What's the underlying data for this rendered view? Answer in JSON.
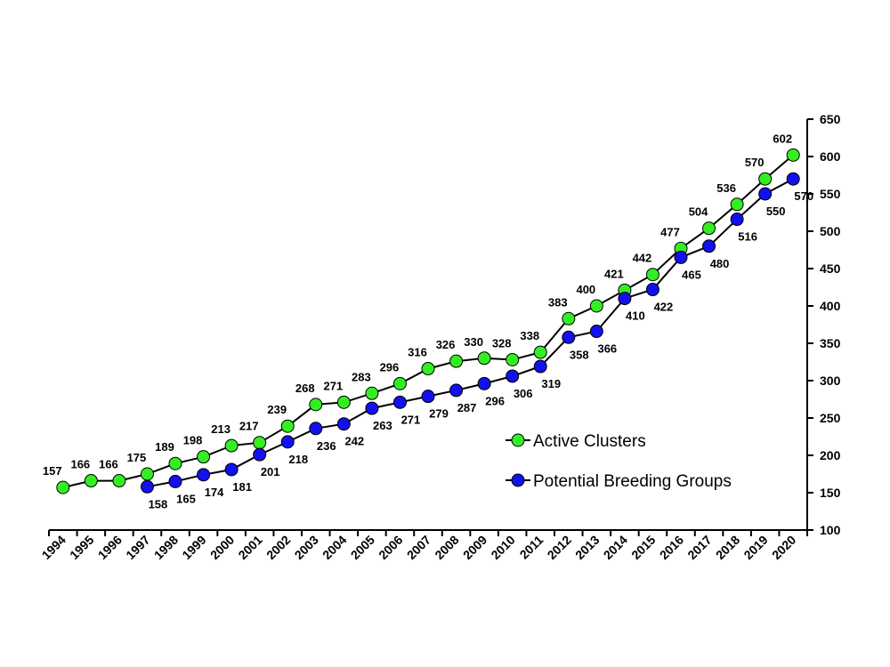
{
  "chart_data": {
    "type": "line",
    "x": [
      1994,
      1995,
      1996,
      1997,
      1998,
      1999,
      2000,
      2001,
      2002,
      2003,
      2004,
      2005,
      2006,
      2007,
      2008,
      2009,
      2010,
      2011,
      2012,
      2013,
      2014,
      2015,
      2016,
      2017,
      2018,
      2019,
      2020
    ],
    "x_tick_labels": [
      "1994",
      "1995",
      "1996",
      "1997",
      "1998",
      "1999",
      "2000",
      "2001",
      "2002",
      "2003",
      "2004",
      "2005",
      "2006",
      "2007",
      "2008",
      "2009",
      "2010",
      "2011",
      "2012",
      "2013",
      "2014",
      "2015",
      "2016",
      "2017",
      "2018",
      "2019",
      "2020"
    ],
    "series": [
      {
        "name": "Active Clusters",
        "color": "#33ee22",
        "label_position": "above",
        "values": [
          157,
          166,
          166,
          175,
          189,
          198,
          213,
          217,
          239,
          268,
          271,
          283,
          296,
          316,
          326,
          330,
          328,
          338,
          383,
          400,
          421,
          442,
          477,
          504,
          536,
          570,
          602
        ]
      },
      {
        "name": "Potential Breeding Groups",
        "color": "#1111ee",
        "label_position": "below",
        "values": [
          null,
          null,
          null,
          158,
          165,
          174,
          181,
          201,
          218,
          236,
          242,
          263,
          271,
          279,
          287,
          296,
          306,
          319,
          358,
          366,
          410,
          422,
          465,
          480,
          516,
          550,
          570
        ]
      }
    ],
    "y_axis": {
      "position": "right",
      "min": 100,
      "max": 650,
      "step": 50,
      "tick_labels": [
        "100",
        "150",
        "200",
        "250",
        "300",
        "350",
        "400",
        "450",
        "500",
        "550",
        "600",
        "650"
      ]
    },
    "grid": false,
    "legend_position": "inside-bottom-right"
  }
}
